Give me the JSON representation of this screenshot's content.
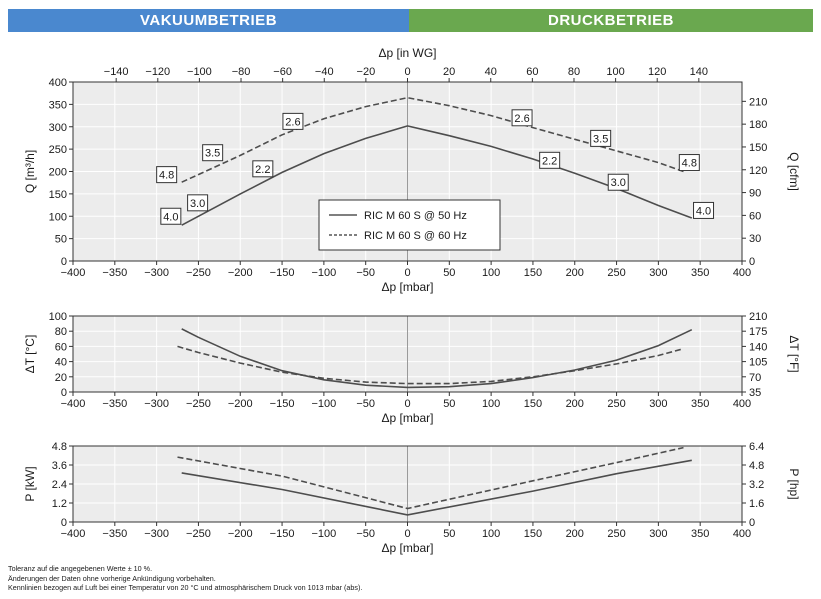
{
  "header": {
    "left": {
      "label": "VAKUUMBETRIEB",
      "color": "#4a88cf"
    },
    "right": {
      "label": "DRUCKBETRIEB",
      "color": "#6aa84f"
    }
  },
  "colors": {
    "panel_bg": "#ececec",
    "grid": "#ffffff",
    "line": "#4d4d4d",
    "zero_line": "#9a9a9a"
  },
  "legend": [
    {
      "label": "RIC M 60 S @ 50 Hz",
      "style": "solid"
    },
    {
      "label": "RIC M 60 S @ 60 Hz",
      "style": "dashed"
    }
  ],
  "chart_data": [
    {
      "type": "line",
      "id": "flow",
      "top_axis": {
        "label": "Δp [in WG]",
        "ticks": [
          -140,
          -120,
          -100,
          -80,
          -60,
          -40,
          -20,
          0,
          20,
          40,
          60,
          80,
          100,
          120,
          140
        ]
      },
      "xlabel": "Δp [mbar]",
      "xlim": [
        -400,
        400
      ],
      "x_ticks": [
        -400,
        -350,
        -300,
        -250,
        -200,
        -150,
        -100,
        -50,
        0,
        50,
        100,
        150,
        200,
        250,
        300,
        350,
        400
      ],
      "ylabel": "Q [m³/h]",
      "ylim": [
        0,
        400
      ],
      "y_ticks": [
        0,
        50,
        100,
        150,
        200,
        250,
        300,
        350,
        400
      ],
      "ylabel_right": "Q [cfm]",
      "y_ticks_right": [
        0,
        30,
        60,
        90,
        120,
        150,
        180,
        210
      ],
      "grid": true,
      "series": [
        {
          "name": "RIC M 60 S @ 50 Hz",
          "style": "solid",
          "x": [
            -270,
            -200,
            -150,
            -100,
            -50,
            0,
            50,
            100,
            150,
            200,
            250,
            300,
            340
          ],
          "y": [
            80,
            150,
            198,
            240,
            274,
            302,
            280,
            256,
            228,
            196,
            162,
            124,
            96
          ]
        },
        {
          "name": "RIC M 60 S @ 60 Hz",
          "style": "dashed",
          "x": [
            -270,
            -200,
            -150,
            -100,
            -50,
            0,
            50,
            100,
            150,
            200,
            250,
            300,
            330
          ],
          "y": [
            176,
            236,
            282,
            318,
            345,
            365,
            347,
            325,
            298,
            272,
            246,
            220,
            200
          ]
        }
      ],
      "annotations": [
        {
          "text": "4.8",
          "x": -288,
          "y": 193
        },
        {
          "text": "3.5",
          "x": -233,
          "y": 242
        },
        {
          "text": "2.6",
          "x": -137,
          "y": 312
        },
        {
          "text": "2.2",
          "x": -173,
          "y": 206
        },
        {
          "text": "3.0",
          "x": -251,
          "y": 130
        },
        {
          "text": "4.0",
          "x": -283,
          "y": 100
        },
        {
          "text": "2.6",
          "x": 137,
          "y": 320
        },
        {
          "text": "3.5",
          "x": 231,
          "y": 274
        },
        {
          "text": "4.8",
          "x": 337,
          "y": 220
        },
        {
          "text": "2.2",
          "x": 170,
          "y": 225
        },
        {
          "text": "3.0",
          "x": 252,
          "y": 176
        },
        {
          "text": "4.0",
          "x": 354,
          "y": 113
        }
      ]
    },
    {
      "type": "line",
      "id": "temperature",
      "xlabel": "Δp [mbar]",
      "xlim": [
        -400,
        400
      ],
      "x_ticks": [
        -400,
        -350,
        -300,
        -250,
        -200,
        -150,
        -100,
        -50,
        0,
        50,
        100,
        150,
        200,
        250,
        300,
        350,
        400
      ],
      "ylabel": "ΔT [°C]",
      "ylim": [
        0,
        100
      ],
      "y_ticks": [
        0,
        20,
        40,
        60,
        80,
        100
      ],
      "ylabel_right": "ΔT [°F]",
      "y_ticks_right": [
        35,
        70,
        105,
        140,
        175,
        210
      ],
      "grid": true,
      "series": [
        {
          "name": "RIC M 60 S @ 50 Hz",
          "style": "solid",
          "x": [
            -270,
            -250,
            -200,
            -150,
            -100,
            -50,
            0,
            50,
            100,
            150,
            200,
            250,
            300,
            340
          ],
          "y": [
            83,
            72,
            47,
            28,
            16,
            9,
            6,
            7,
            11,
            19,
            29,
            42,
            61,
            82
          ]
        },
        {
          "name": "RIC M 60 S @ 60 Hz",
          "style": "dashed",
          "x": [
            -275,
            -250,
            -200,
            -150,
            -100,
            -50,
            0,
            50,
            100,
            150,
            200,
            250,
            300,
            330
          ],
          "y": [
            60,
            52,
            38,
            26,
            18,
            13,
            11,
            11,
            14,
            20,
            28,
            37,
            48,
            57
          ]
        }
      ]
    },
    {
      "type": "line",
      "id": "power",
      "xlabel": "Δp [mbar]",
      "xlim": [
        -400,
        400
      ],
      "x_ticks": [
        -400,
        -350,
        -300,
        -250,
        -200,
        -150,
        -100,
        -50,
        0,
        50,
        100,
        150,
        200,
        250,
        300,
        350,
        400
      ],
      "ylabel": "P [kW]",
      "ylim": [
        0,
        4.8
      ],
      "y_ticks": [
        0,
        1.2,
        2.4,
        3.6,
        4.8
      ],
      "ylabel_right": "P [hp]",
      "y_ticks_right": [
        0,
        1.6,
        3.2,
        4.8,
        6.4
      ],
      "grid": true,
      "series": [
        {
          "name": "RIC M 60 S @ 50 Hz",
          "style": "solid",
          "x": [
            -270,
            -150,
            0,
            150,
            250,
            340
          ],
          "y": [
            3.1,
            2.05,
            0.45,
            1.95,
            3.05,
            3.9
          ]
        },
        {
          "name": "RIC M 60 S @ 60 Hz",
          "style": "dashed",
          "x": [
            -275,
            -150,
            0,
            150,
            250,
            330
          ],
          "y": [
            4.1,
            2.9,
            0.85,
            2.6,
            3.75,
            4.7
          ]
        }
      ]
    }
  ],
  "footnotes": [
    "Toleranz auf die angegebenen Werte ± 10 %.",
    "Änderungen der Daten ohne vorherige Ankündigung vorbehalten.",
    "Kennlinien bezogen auf Luft bei einer Temperatur von 20 °C und atmosphärischem Druck von 1013 mbar (abs)."
  ]
}
